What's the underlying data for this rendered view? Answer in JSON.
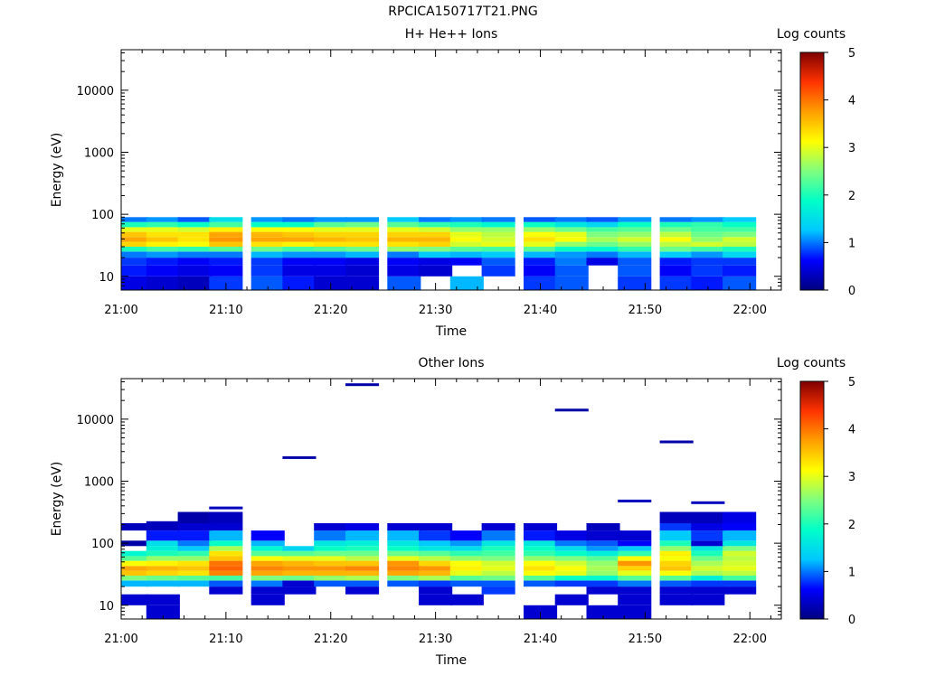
{
  "page": {
    "title": "RPCICA150717T21.PNG"
  },
  "colormap": [
    "#00007f",
    "#0000ff",
    "#00c8ff",
    "#00ffc8",
    "#7fff7f",
    "#ffff00",
    "#ff9f00",
    "#ff3300",
    "#7f0000"
  ],
  "chart_data": [
    {
      "type": "heatmap",
      "title": "H+ He++ Ions",
      "xlabel": "Time",
      "ylabel": "Energy (eV)",
      "colorbar_label": "Log counts",
      "colorbar_ticks": [
        "0",
        "1",
        "2",
        "3",
        "4",
        "5"
      ],
      "clim": [
        0,
        5
      ],
      "y_scale": "log",
      "ylim": [
        6,
        45000
      ],
      "y_ticks": [
        "10",
        "100",
        "1000",
        "10000"
      ],
      "x_ticks": [
        "21:00",
        "21:10",
        "21:20",
        "21:30",
        "21:40",
        "21:50",
        "22:00"
      ],
      "x_range_minutes": [
        0,
        63
      ],
      "time_bins": [
        "21:01",
        "21:04",
        "21:07",
        "21:10",
        "21:14",
        "21:17",
        "21:20",
        "21:23",
        "21:27",
        "21:30",
        "21:33",
        "21:36",
        "21:40",
        "21:43",
        "21:46",
        "21:49",
        "21:53",
        "21:56",
        "21:59"
      ],
      "energy_bands": [
        {
          "range_eV": [
            6,
            10
          ],
          "values": [
            0.5,
            0.4,
            0.3,
            0.8,
            0.9,
            0.7,
            0.4,
            0.4,
            0.9,
            null,
            1.2,
            null,
            0.8,
            0.9,
            null,
            0.8,
            0.8,
            0.7,
            0.9
          ]
        },
        {
          "range_eV": [
            10,
            15
          ],
          "values": [
            0.7,
            0.6,
            0.5,
            0.6,
            0.8,
            0.5,
            0.5,
            0.4,
            0.5,
            0.4,
            null,
            0.8,
            0.6,
            0.9,
            null,
            0.9,
            0.6,
            0.8,
            0.7
          ]
        },
        {
          "range_eV": [
            15,
            20
          ],
          "values": [
            0.8,
            0.7,
            0.6,
            0.7,
            0.8,
            0.6,
            0.6,
            0.5,
            0.6,
            0.5,
            0.6,
            0.9,
            0.7,
            1.0,
            0.5,
            0.9,
            0.7,
            0.8,
            0.8
          ]
        },
        {
          "range_eV": [
            20,
            25
          ],
          "values": [
            1.0,
            1.1,
            1.0,
            1.0,
            1.2,
            1.1,
            1.1,
            1.2,
            1.0,
            1.3,
            1.2,
            1.3,
            1.2,
            1.1,
            1.0,
            1.2,
            1.3,
            1.1,
            1.4
          ]
        },
        {
          "range_eV": [
            25,
            30
          ],
          "values": [
            2.0,
            2.2,
            2.1,
            2.3,
            2.4,
            2.2,
            2.3,
            2.4,
            2.6,
            2.5,
            2.3,
            2.2,
            2.3,
            1.9,
            1.8,
            2.1,
            2.4,
            2.2,
            2.0
          ]
        },
        {
          "range_eV": [
            30,
            36
          ],
          "values": [
            3.4,
            3.2,
            3.1,
            3.5,
            3.3,
            3.2,
            3.3,
            3.3,
            3.3,
            3.4,
            2.9,
            3.0,
            3.0,
            2.6,
            2.4,
            2.6,
            2.8,
            2.9,
            2.8
          ]
        },
        {
          "range_eV": [
            36,
            43
          ],
          "values": [
            3.7,
            3.5,
            3.3,
            3.8,
            3.7,
            3.7,
            3.6,
            3.5,
            3.6,
            3.6,
            3.1,
            2.9,
            3.3,
            3.1,
            2.7,
            2.9,
            3.1,
            2.6,
            2.9
          ]
        },
        {
          "range_eV": [
            43,
            52
          ],
          "values": [
            3.5,
            3.3,
            3.3,
            3.7,
            3.6,
            3.5,
            3.4,
            3.4,
            3.4,
            3.4,
            3.0,
            2.8,
            3.1,
            3.0,
            2.5,
            2.6,
            2.8,
            2.4,
            2.5
          ]
        },
        {
          "range_eV": [
            52,
            62
          ],
          "values": [
            3.0,
            3.0,
            2.9,
            3.2,
            3.1,
            3.1,
            3.0,
            3.0,
            3.0,
            2.9,
            2.6,
            2.6,
            2.6,
            2.4,
            2.2,
            2.3,
            2.4,
            2.2,
            2.2
          ]
        },
        {
          "range_eV": [
            62,
            75
          ],
          "values": [
            2.0,
            2.1,
            1.9,
            2.2,
            1.9,
            1.9,
            2.3,
            2.4,
            2.3,
            2.1,
            2.0,
            1.8,
            1.9,
            1.6,
            1.4,
            1.9,
            2.0,
            2.1,
            1.9
          ]
        },
        {
          "range_eV": [
            75,
            90
          ],
          "values": [
            1.0,
            1.1,
            0.9,
            1.5,
            1.1,
            1.0,
            1.1,
            1.1,
            1.3,
            1.0,
            1.1,
            1.0,
            0.9,
            1.0,
            0.9,
            1.1,
            1.0,
            1.1,
            1.3
          ]
        }
      ]
    },
    {
      "type": "heatmap",
      "title": "Other Ions",
      "xlabel": "Time",
      "ylabel": "Energy (eV)",
      "colorbar_label": "Log counts",
      "colorbar_ticks": [
        "0",
        "1",
        "2",
        "3",
        "4",
        "5"
      ],
      "clim": [
        0,
        5
      ],
      "y_scale": "log",
      "ylim": [
        6,
        45000
      ],
      "y_ticks": [
        "10",
        "100",
        "1000",
        "10000"
      ],
      "x_ticks": [
        "21:00",
        "21:10",
        "21:20",
        "21:30",
        "21:40",
        "21:50",
        "22:00"
      ],
      "x_range_minutes": [
        0,
        63
      ],
      "time_bins": [
        "21:01",
        "21:04",
        "21:07",
        "21:10",
        "21:14",
        "21:17",
        "21:20",
        "21:23",
        "21:27",
        "21:30",
        "21:33",
        "21:36",
        "21:40",
        "21:43",
        "21:46",
        "21:49",
        "21:53",
        "21:56",
        "21:59"
      ],
      "energy_bands": [
        {
          "range_eV": [
            6,
            10
          ],
          "values": [
            null,
            0.4,
            null,
            null,
            null,
            null,
            null,
            null,
            null,
            null,
            null,
            null,
            0.4,
            null,
            0.4,
            0.4,
            null,
            null,
            null
          ]
        },
        {
          "range_eV": [
            10,
            15
          ],
          "values": [
            0.4,
            0.4,
            null,
            null,
            0.4,
            null,
            null,
            null,
            null,
            0.4,
            0.4,
            null,
            null,
            0.4,
            null,
            0.4,
            0.4,
            0.4,
            null
          ]
        },
        {
          "range_eV": [
            15,
            20
          ],
          "values": [
            null,
            null,
            null,
            0.4,
            0.4,
            0.4,
            null,
            0.4,
            null,
            0.4,
            null,
            0.8,
            null,
            null,
            0.4,
            0.4,
            0.4,
            0.4,
            0.4
          ]
        },
        {
          "range_eV": [
            20,
            25
          ],
          "values": [
            1.2,
            1.2,
            1.2,
            0.9,
            1.0,
            0.4,
            0.9,
            0.9,
            0.9,
            0.8,
            0.9,
            0.9,
            0.9,
            0.8,
            0.8,
            1.0,
            0.9,
            0.8,
            0.8
          ]
        },
        {
          "range_eV": [
            25,
            30
          ],
          "values": [
            2.5,
            2.4,
            2.3,
            2.2,
            2.5,
            2.4,
            2.6,
            2.7,
            2.5,
            2.7,
            2.3,
            2.4,
            2.3,
            1.9,
            1.8,
            2.3,
            2.3,
            1.7,
            2.2
          ]
        },
        {
          "range_eV": [
            30,
            36
          ],
          "values": [
            3.5,
            3.4,
            3.3,
            3.9,
            3.7,
            3.6,
            3.6,
            3.6,
            3.7,
            3.6,
            3.0,
            2.8,
            3.1,
            3.0,
            2.6,
            3.0,
            3.1,
            2.7,
            2.8
          ]
        },
        {
          "range_eV": [
            36,
            43
          ],
          "values": [
            3.7,
            3.6,
            3.5,
            4.1,
            3.9,
            3.8,
            3.8,
            3.9,
            3.9,
            3.8,
            3.2,
            3.0,
            3.3,
            3.1,
            2.7,
            3.4,
            3.5,
            2.9,
            3.0
          ]
        },
        {
          "range_eV": [
            43,
            52
          ],
          "values": [
            3.1,
            3.2,
            3.3,
            4.0,
            3.7,
            3.6,
            3.5,
            3.5,
            3.8,
            3.4,
            3.1,
            2.9,
            3.1,
            2.9,
            2.6,
            3.8,
            3.4,
            2.7,
            2.9
          ]
        },
        {
          "range_eV": [
            52,
            62
          ],
          "values": [
            2.3,
            2.6,
            2.6,
            3.5,
            3.1,
            3.0,
            3.0,
            2.8,
            3.0,
            2.8,
            2.6,
            2.5,
            2.6,
            2.5,
            2.3,
            3.1,
            3.1,
            2.4,
            2.8
          ]
        },
        {
          "range_eV": [
            62,
            75
          ],
          "values": [
            1.8,
            2.0,
            2.1,
            3.3,
            2.3,
            2.3,
            2.4,
            2.4,
            2.4,
            2.3,
            2.1,
            2.2,
            2.1,
            1.9,
            1.7,
            2.1,
            3.2,
            2.0,
            2.9
          ]
        },
        {
          "range_eV": [
            75,
            90
          ],
          "values": [
            null,
            1.7,
            1.3,
            2.7,
            1.8,
            1.4,
            1.9,
            2.0,
            1.9,
            1.6,
            1.5,
            2.0,
            1.9,
            1.5,
            1.1,
            1.3,
            2.6,
            1.6,
            2.5
          ]
        },
        {
          "range_eV": [
            90,
            110
          ],
          "values": [
            0.2,
            1.5,
            1.0,
            1.9,
            1.2,
            null,
            1.6,
            1.7,
            1.6,
            1.3,
            1.1,
            1.6,
            1.6,
            1.0,
            0.9,
            0.6,
            2.0,
            0.4,
            1.6
          ]
        },
        {
          "range_eV": [
            110,
            160
          ],
          "values": [
            null,
            0.7,
            0.7,
            1.2,
            0.6,
            null,
            1.0,
            1.2,
            1.2,
            0.8,
            0.6,
            1.0,
            0.7,
            0.5,
            0.4,
            0.4,
            1.3,
            0.8,
            1.2
          ]
        },
        {
          "range_eV": [
            160,
            210
          ],
          "values": [
            0.3,
            0.3,
            0.4,
            0.4,
            null,
            null,
            0.4,
            0.5,
            0.4,
            0.4,
            null,
            0.4,
            0.4,
            null,
            0.3,
            null,
            0.8,
            0.5,
            0.6
          ]
        },
        {
          "range_eV": [
            210,
            320
          ],
          "values": [
            null,
            null,
            0.2,
            0.3,
            null,
            null,
            null,
            null,
            null,
            null,
            null,
            null,
            null,
            null,
            null,
            null,
            0.3,
            0.3,
            0.5
          ]
        }
      ],
      "isolated_counts": [
        {
          "time": "21:01",
          "energy_eV": 190,
          "value": 0.3
        },
        {
          "time": "21:04",
          "energy_eV": 215,
          "value": 0.3
        },
        {
          "time": "21:10",
          "energy_eV": 370,
          "value": 0.3
        },
        {
          "time": "21:17",
          "energy_eV": 2400,
          "value": 0.2
        },
        {
          "time": "21:23",
          "energy_eV": 36000,
          "value": 0.2
        },
        {
          "time": "21:43",
          "energy_eV": 14000,
          "value": 0.2
        },
        {
          "time": "21:49",
          "energy_eV": 480,
          "value": 0.3
        },
        {
          "time": "21:53",
          "energy_eV": 4300,
          "value": 0.2
        },
        {
          "time": "21:56",
          "energy_eV": 450,
          "value": 0.3
        }
      ]
    }
  ]
}
